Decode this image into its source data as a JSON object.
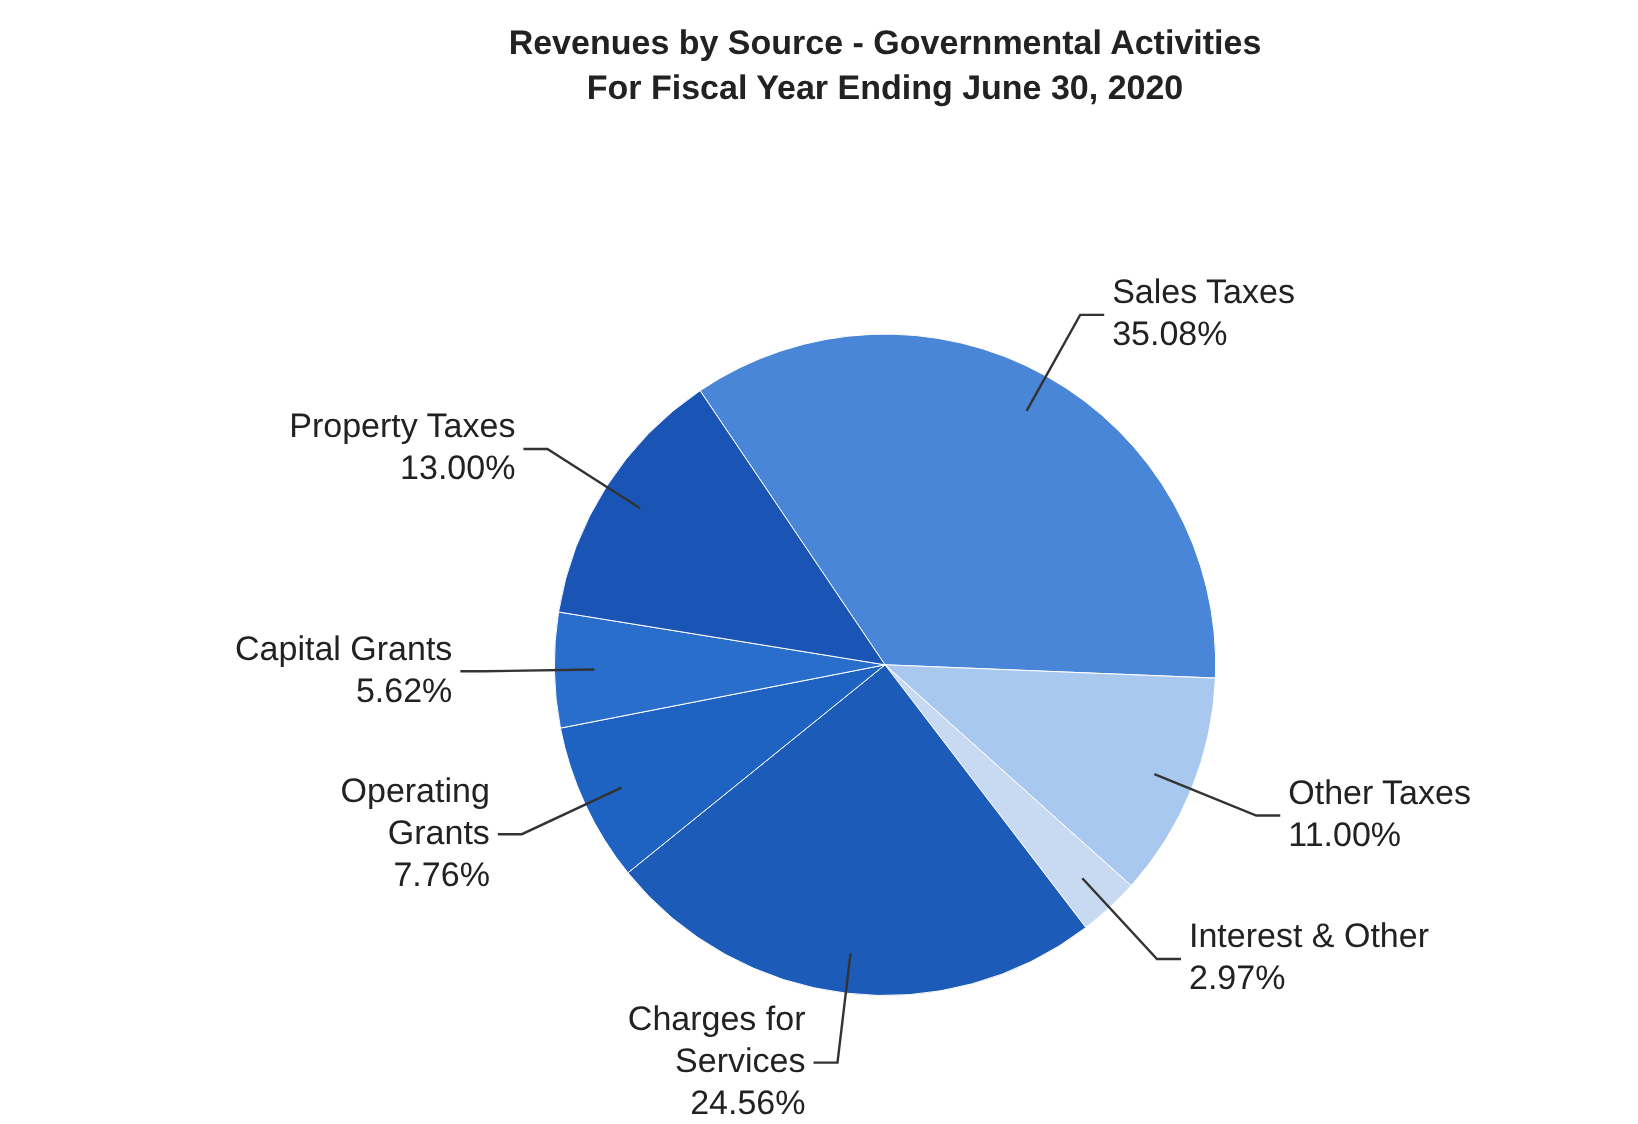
{
  "chart_data": {
    "type": "pie",
    "title": "Revenues by Source - Governmental Activities",
    "subtitle": "For Fiscal Year Ending June 30, 2020",
    "categories": [
      "Sales Taxes",
      "Other Taxes",
      "Interest & Other",
      "Charges for Services",
      "Operating Grants",
      "Capital Grants",
      "Property Taxes"
    ],
    "values": [
      35.08,
      11.0,
      2.97,
      24.56,
      7.76,
      5.62,
      13.0
    ],
    "value_labels": [
      "35.08%",
      "11.00%",
      "2.97%",
      "24.56%",
      "7.76%",
      "5.62%",
      "13.00%"
    ],
    "colors": [
      "#4a86d8",
      "#a9c8f0",
      "#c8daf2",
      "#1d5bb8",
      "#1e62c2",
      "#2a6ecc",
      "#1a55b5"
    ],
    "legend": false
  }
}
